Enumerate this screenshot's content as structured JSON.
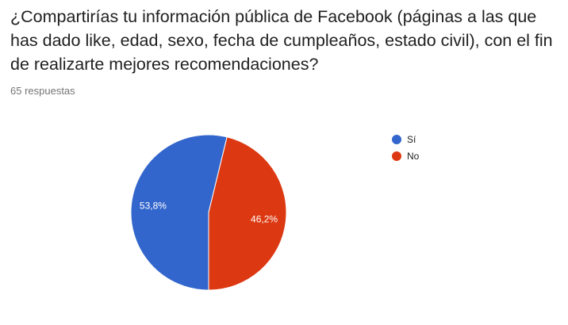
{
  "form": {
    "question": "¿Compartirías tu información pública de Facebook (páginas a las que has dado like, edad, sexo, fecha de cumpleaños, estado civil), con el fin de realizarte mejores recomendaciones?",
    "responses": "65 respuestas"
  },
  "chart_data": {
    "type": "pie",
    "title": "",
    "slices": [
      {
        "label": "Sí",
        "value": 53.8,
        "display": "53,8%",
        "color": "#3366cc"
      },
      {
        "label": "No",
        "value": 46.2,
        "display": "46,2%",
        "color": "#dc3912"
      }
    ],
    "legend": "right",
    "start_angle_deg": 90,
    "direction": "clockwise"
  }
}
